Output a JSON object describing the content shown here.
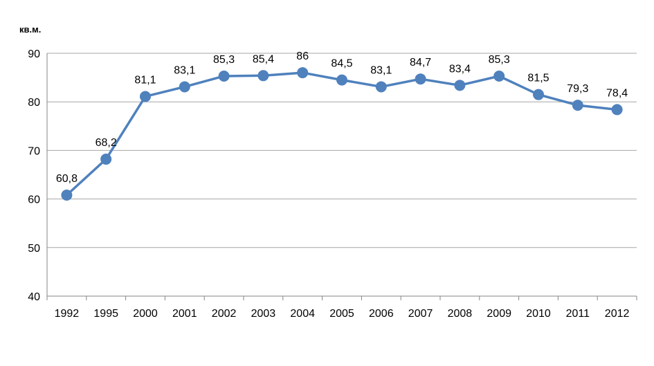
{
  "chart_data": {
    "type": "line",
    "title": "",
    "ylabel": "кв.м.",
    "xlabel": "",
    "categories": [
      "1992",
      "1995",
      "2000",
      "2001",
      "2002",
      "2003",
      "2004",
      "2005",
      "2006",
      "2007",
      "2008",
      "2009",
      "2010",
      "2011",
      "2012"
    ],
    "series": [
      {
        "values": [
          60.8,
          68.2,
          81.1,
          83.1,
          85.3,
          85.4,
          86,
          84.5,
          83.1,
          84.7,
          83.4,
          85.3,
          81.5,
          79.3,
          78.4
        ],
        "labels": [
          "60,8",
          "68,2",
          "81,1",
          "83,1",
          "85,3",
          "85,4",
          "86",
          "84,5",
          "83,1",
          "84,7",
          "83,4",
          "85,3",
          "81,5",
          "79,3",
          "78,4"
        ]
      }
    ],
    "ylim": [
      40,
      90
    ],
    "yticks": [
      "40",
      "50",
      "60",
      "70",
      "80",
      "90"
    ],
    "grid": true,
    "legend": "none",
    "colors": {
      "line": "#4F81BD",
      "marker": "#4F81BD",
      "grid": "#A6A6A6",
      "axis": "#868686"
    }
  }
}
